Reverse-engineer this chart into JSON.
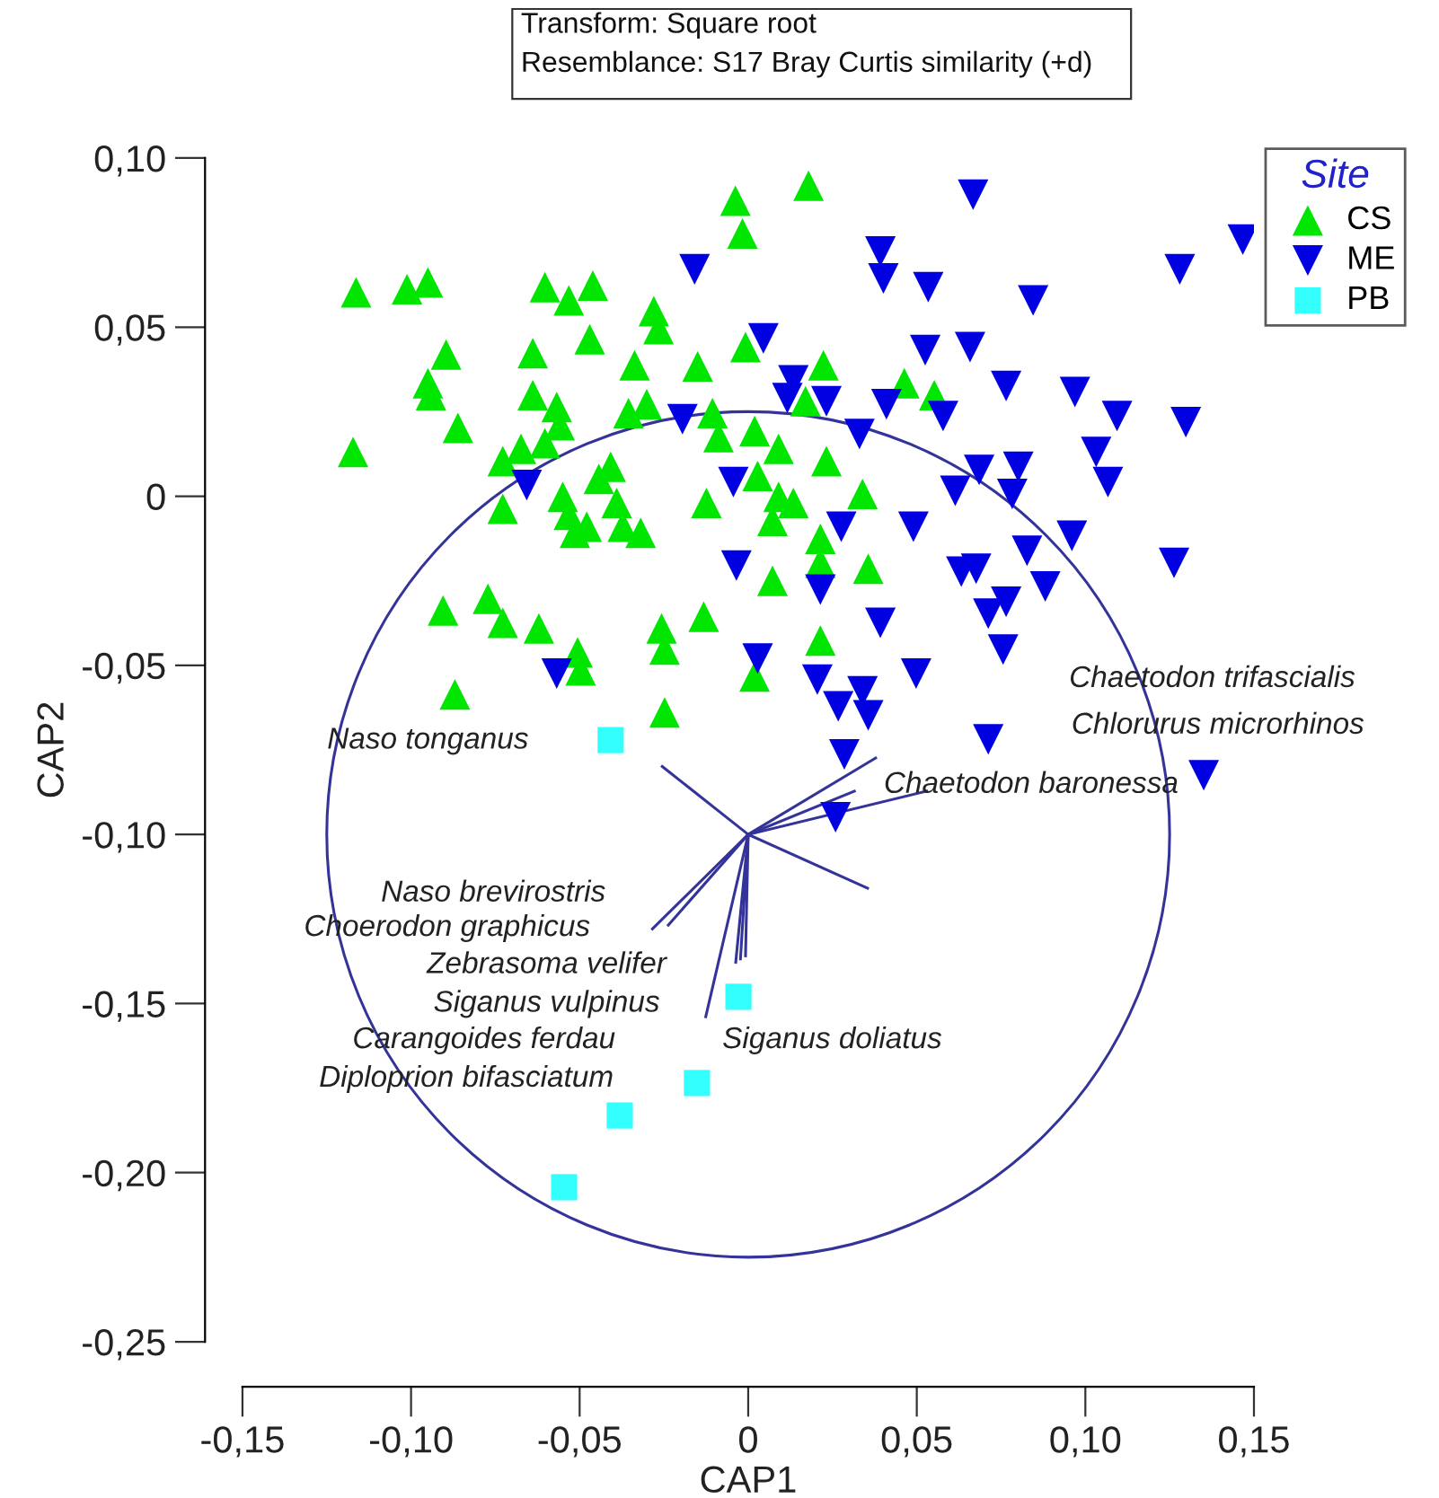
{
  "chart_data": {
    "type": "scatter",
    "xlabel": "CAP1",
    "ylabel": "CAP2",
    "legend_title": "Site",
    "legend": "top right",
    "grid": false,
    "xlim": [
      -0.15,
      0.15
    ],
    "ylim": [
      -0.25,
      0.1
    ],
    "xticks": [
      {
        "value": -0.15,
        "label": "-0,15"
      },
      {
        "value": -0.1,
        "label": "-0,10"
      },
      {
        "value": -0.05,
        "label": "-0,05"
      },
      0,
      {
        "value": 0.05,
        "label": "0,05"
      },
      {
        "value": 0.1,
        "label": "0,10"
      },
      {
        "value": 0.15,
        "label": "0,15"
      }
    ],
    "yticks": [
      {
        "value": -0.25,
        "label": "-0,25"
      },
      {
        "value": -0.2,
        "label": "-0,20"
      },
      {
        "value": -0.15,
        "label": "-0,15"
      },
      {
        "value": -0.1,
        "label": "-0,10"
      },
      {
        "value": -0.05,
        "label": "-0,05"
      },
      0,
      {
        "value": 0.05,
        "label": "0,05"
      },
      {
        "value": 0.1,
        "label": "0,10"
      }
    ],
    "annotations": [
      "Transform: Square root",
      "Resemblance: S17 Bray Curtis similarity (+d)",
      "Naso tonganus",
      "Chaetodon trifascialis",
      "Chlorurus microrhinos",
      "Chaetodon baronessa",
      "Naso brevirostris",
      "Choerodon graphicus",
      "Zebrasoma velifer",
      "Siganus vulpinus",
      "Carangoides ferdau",
      "Diploprion bifasciatum",
      "Siganus doliatus"
    ],
    "series": [
      {
        "type": "line",
        "color": "#333399",
        "x": [
          0,
          -0.0255
        ],
        "values": [
          -0.1,
          -0.0799
        ]
      },
      {
        "type": "line",
        "color": "#333399",
        "x": [
          0,
          0.0378
        ],
        "values": [
          -0.1,
          -0.0774
        ]
      },
      {
        "type": "line",
        "color": "#333399",
        "x": [
          0,
          0.0315
        ],
        "values": [
          -0.1,
          -0.0872
        ]
      },
      {
        "type": "line",
        "color": "#333399",
        "x": [
          0,
          0.0529
        ],
        "values": [
          -0.1,
          -0.0872
        ]
      },
      {
        "type": "line",
        "color": "#333399",
        "x": [
          0,
          0.0354
        ],
        "values": [
          -0.1,
          -0.1159
        ]
      },
      {
        "type": "line",
        "color": "#333399",
        "x": [
          0,
          -0.0284
        ],
        "values": [
          -0.1,
          -0.1279
        ]
      },
      {
        "type": "line",
        "color": "#333399",
        "x": [
          0,
          -0.0237
        ],
        "values": [
          -0.1,
          -0.1268
        ]
      },
      {
        "type": "line",
        "color": "#333399",
        "x": [
          0,
          -0.0126
        ],
        "values": [
          -0.1,
          -0.1539
        ]
      },
      {
        "type": "line",
        "color": "#333399",
        "x": [
          0,
          -0.0037
        ],
        "values": [
          -0.1,
          -0.1378
        ]
      },
      {
        "type": "line",
        "color": "#333399",
        "x": [
          0,
          -0.0023
        ],
        "values": [
          -0.1,
          -0.1368
        ]
      },
      {
        "type": "line",
        "color": "#333399",
        "x": [
          0,
          -0.0008
        ],
        "values": [
          -0.1,
          -0.1359
        ]
      },
      {
        "name": "CS",
        "color": "#00e600",
        "marker": "triangle",
        "x": [
          -0.0038,
          -0.0017,
          -0.1163,
          -0.1012,
          -0.095,
          -0.0603,
          -0.0532,
          -0.0461,
          -0.0896,
          -0.0639,
          -0.047,
          -0.028,
          -0.0266,
          -0.0337,
          -0.015,
          -0.095,
          -0.0941,
          -0.0861,
          -0.0639,
          -0.0568,
          -0.0559,
          -0.0355,
          -0.0301,
          -0.0106,
          -0.0088,
          -0.1172,
          -0.0728,
          -0.0674,
          -0.0603,
          -0.0728,
          -0.055,
          -0.0532,
          -0.0514,
          -0.0443,
          -0.0408,
          -0.039,
          -0.0372,
          -0.0319,
          -0.0479,
          -0.0124,
          -0.0905,
          -0.0772,
          -0.0728,
          -0.0621,
          -0.0506,
          -0.0497,
          -0.087,
          -0.0257,
          -0.0248,
          -0.0132,
          -0.0248,
          0.0179,
          -0.0008,
          0.0223,
          0.0463,
          0.0552,
          0.0019,
          0.009,
          0.017,
          0.0232,
          0.0028,
          0.009,
          0.0134,
          0.0072,
          0.0339,
          0.0214,
          0.0214,
          0.0356,
          0.0072,
          0.0214,
          0.0019
        ],
        "values": [
          0.0874,
          0.0777,
          0.0603,
          0.0612,
          0.0632,
          0.0618,
          0.0579,
          0.0623,
          0.0419,
          0.0423,
          0.0464,
          0.0547,
          0.0494,
          0.0387,
          0.0384,
          0.0334,
          0.0299,
          0.0202,
          0.0299,
          0.0264,
          0.021,
          0.0246,
          0.0272,
          0.0246,
          0.0175,
          0.0131,
          0.0104,
          0.014,
          0.0157,
          -0.0037,
          -0.0002,
          -0.0055,
          -0.0108,
          0.0051,
          0.0087,
          -0.002,
          -0.009,
          -0.0108,
          -0.009,
          -0.002,
          -0.0338,
          -0.0303,
          -0.0374,
          -0.0391,
          -0.0462,
          -0.0515,
          -0.0586,
          -0.0391,
          -0.0453,
          -0.0356,
          -0.0639,
          0.0918,
          0.0441,
          0.0387,
          0.0334,
          0.0299,
          0.0193,
          0.014,
          0.0281,
          0.0104,
          0.006,
          -0.0002,
          -0.002,
          -0.0073,
          0.0007,
          -0.0126,
          -0.0197,
          -0.0214,
          -0.025,
          -0.0427,
          -0.0533
        ]
      },
      {
        "name": "ME",
        "color": "#0000e0",
        "marker": "triangle_down",
        "x": [
          -0.0159,
          -0.0195,
          -0.0657,
          -0.0044,
          -0.0035,
          -0.0568,
          0.0667,
          0.1467,
          0.128,
          0.0392,
          0.0401,
          0.0534,
          0.0845,
          0.0045,
          0.0525,
          0.0658,
          0.0134,
          0.0116,
          0.0232,
          0.041,
          0.0578,
          0.0765,
          0.0969,
          0.1094,
          0.1298,
          0.033,
          0.1032,
          0.1067,
          0.0685,
          0.0801,
          0.0614,
          0.0783,
          0.0276,
          0.049,
          0.096,
          0.0827,
          0.1263,
          0.0632,
          0.0676,
          0.0881,
          0.0214,
          0.0712,
          0.0765,
          0.0392,
          0.0756,
          0.0028,
          0.0498,
          0.0205,
          0.0267,
          0.0339,
          0.0356,
          0.0285,
          0.0712,
          0.1351,
          0.0259
        ],
        "values": [
          0.0671,
          0.0228,
          0.0033,
          0.0042,
          -0.0205,
          -0.0524,
          0.0892,
          0.0759,
          0.0671,
          0.0724,
          0.0644,
          0.0618,
          0.0579,
          0.0467,
          0.0432,
          0.0441,
          0.0343,
          0.029,
          0.0281,
          0.0272,
          0.0237,
          0.0326,
          0.0308,
          0.0237,
          0.0219,
          0.0184,
          0.0131,
          0.0042,
          0.0078,
          0.0087,
          0.0016,
          0.0007,
          -0.009,
          -0.009,
          -0.0117,
          -0.0161,
          -0.0197,
          -0.0223,
          -0.0214,
          -0.0267,
          -0.0276,
          -0.0347,
          -0.0312,
          -0.0374,
          -0.0453,
          -0.048,
          -0.0524,
          -0.0542,
          -0.0621,
          -0.0577,
          -0.0648,
          -0.0763,
          -0.0719,
          -0.0825,
          -0.0949
        ]
      },
      {
        "name": "PB",
        "color": "#33ffff",
        "marker": "square",
        "x": [
          -0.0408,
          -0.0029,
          -0.0152,
          -0.0381,
          -0.0546
        ],
        "values": [
          -0.0721,
          -0.148,
          -0.1735,
          -0.1831,
          -0.2043
        ]
      }
    ]
  }
}
